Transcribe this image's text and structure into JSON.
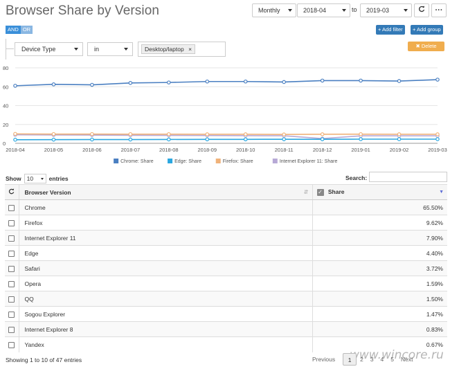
{
  "header": {
    "title": "Browser Share by Version"
  },
  "controls": {
    "period": "Monthly",
    "date_from": "2018-04",
    "to_label": "to",
    "date_to": "2019-03",
    "refresh_icon": "refresh-icon",
    "more_label": "···"
  },
  "filter": {
    "and_label": "AND",
    "or_label": "OR",
    "add_filter_label": "+ Add filter",
    "add_group_label": "+ Add group",
    "delete_label": "✖ Delete",
    "field": "Device Type",
    "operator": "in",
    "value_tag": "Desktop/laptop",
    "tag_remove": "×"
  },
  "chart_data": {
    "type": "line",
    "categories": [
      "2018-04",
      "2018-05",
      "2018-06",
      "2018-07",
      "2018-08",
      "2018-09",
      "2018-10",
      "2018-11",
      "2018-12",
      "2019-01",
      "2019-02",
      "2019-03"
    ],
    "ylim": [
      0,
      80
    ],
    "yticks": [
      0,
      20,
      40,
      60,
      80
    ],
    "grid": true,
    "legend_position": "bottom",
    "series": [
      {
        "name": "Chrome: Share",
        "color": "#4a7fc1",
        "values": [
          61,
          62.5,
          62,
          64,
          64.5,
          65.5,
          65.5,
          65,
          66.5,
          66.5,
          66,
          67.5
        ]
      },
      {
        "name": "Edge: Share",
        "color": "#2aa7e0",
        "values": [
          3.8,
          3.9,
          4,
          4,
          4.1,
          4.2,
          4.2,
          4.3,
          4.3,
          4.4,
          4.4,
          4.4
        ]
      },
      {
        "name": "Firefox: Share",
        "color": "#f0b27a",
        "values": [
          10,
          9.8,
          9.8,
          9.7,
          9.7,
          9.6,
          9.6,
          9.4,
          9.6,
          9.7,
          9.6,
          9.6
        ]
      },
      {
        "name": "Internet Explorer 11: Share",
        "color": "#b7a9d6",
        "values": [
          9,
          8.8,
          8.7,
          8.5,
          8.4,
          8.3,
          8.1,
          8,
          5,
          7.9,
          7.9,
          7.9
        ]
      }
    ]
  },
  "table": {
    "show_label": "Show",
    "page_length": "10",
    "entries_label": "entries",
    "search_label": "Search:",
    "search_value": "",
    "col_browser": "Browser Version",
    "col_share": "Share",
    "rows": [
      {
        "name": "Chrome",
        "share": "65.50%"
      },
      {
        "name": "Firefox",
        "share": "9.62%"
      },
      {
        "name": "Internet Explorer 11",
        "share": "7.90%"
      },
      {
        "name": "Edge",
        "share": "4.40%"
      },
      {
        "name": "Safari",
        "share": "3.72%"
      },
      {
        "name": "Opera",
        "share": "1.59%"
      },
      {
        "name": "QQ",
        "share": "1.50%"
      },
      {
        "name": "Sogou Explorer",
        "share": "1.47%"
      },
      {
        "name": "Internet Explorer 8",
        "share": "0.83%"
      },
      {
        "name": "Yandex",
        "share": "0.67%"
      }
    ],
    "info": "Showing 1 to 10 of 47 entries"
  },
  "pagination": {
    "previous": "Previous",
    "pages": [
      "1",
      "2",
      "3",
      "4",
      "5"
    ],
    "next": "Next"
  },
  "watermark": "www.wincore.ru"
}
